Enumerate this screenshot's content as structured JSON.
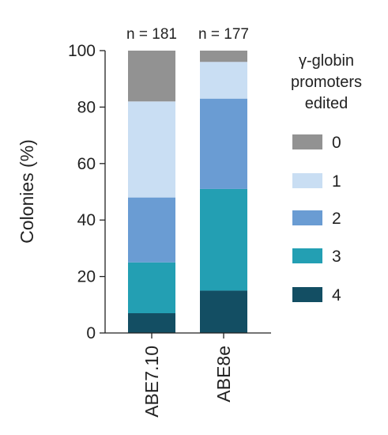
{
  "chart_data": {
    "type": "bar",
    "stacked": true,
    "categories": [
      "ABE7.10",
      "ABE8e"
    ],
    "annotations": [
      "n = 181",
      "n = 177"
    ],
    "ylabel": "Colonies (%)",
    "xlabel": "",
    "ylim": [
      0,
      100
    ],
    "yticks": [
      0,
      20,
      40,
      60,
      80,
      100
    ],
    "grid": false,
    "legend_title": "γ-globin promoters edited",
    "legend_position": "right",
    "series": [
      {
        "name": "4",
        "color": "#134e63",
        "values": [
          7,
          15
        ]
      },
      {
        "name": "3",
        "color": "#239fb3",
        "values": [
          18,
          36
        ]
      },
      {
        "name": "2",
        "color": "#6a9cd3",
        "values": [
          23,
          32
        ]
      },
      {
        "name": "1",
        "color": "#c9def3",
        "values": [
          34,
          13
        ]
      },
      {
        "name": "0",
        "color": "#929292",
        "values": [
          18,
          4
        ]
      }
    ]
  }
}
